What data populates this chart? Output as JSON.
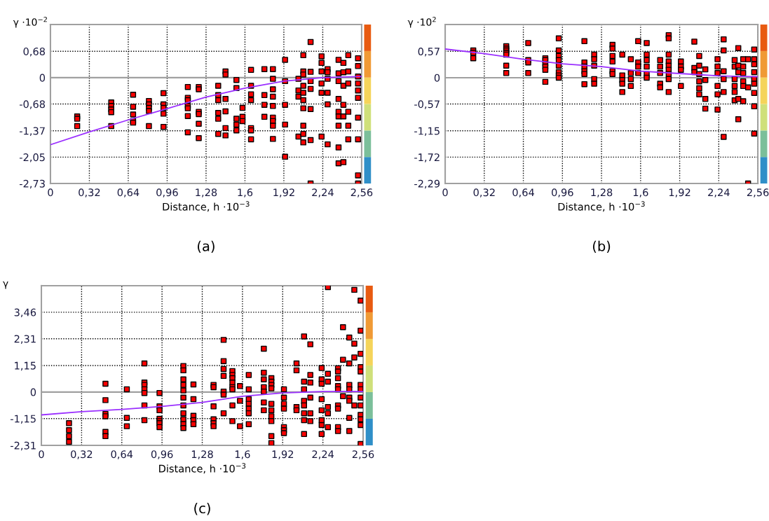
{
  "chart_data": [
    {
      "type": "scatter",
      "ylabel": "γ ·10$^{−2}$",
      "xlabel": "Distance, h ·10$^{−3}$",
      "annotations": [
        "(a)"
      ],
      "xlim": [
        0,
        2.56
      ],
      "ylim": [
        -2.73,
        1.37
      ],
      "xticks": [
        0,
        {
          "value": 0.32,
          "label": "0,32"
        },
        {
          "value": 0.64,
          "label": "0,64"
        },
        {
          "value": 0.96,
          "label": "0,96"
        },
        {
          "value": 1.28,
          "label": "1,28"
        },
        {
          "value": 1.6,
          "label": "1,6"
        },
        {
          "value": 1.92,
          "label": "1,92"
        },
        {
          "value": 2.24,
          "label": "2,24"
        },
        {
          "value": 2.56,
          "label": "2,56"
        }
      ],
      "yticks": [
        {
          "value": 0.68,
          "label": "0,68"
        },
        0,
        {
          "value": -0.68,
          "label": "-0,68"
        },
        {
          "value": -1.37,
          "label": "-1,37"
        },
        {
          "value": -2.05,
          "label": "-2,05"
        },
        {
          "value": -2.73,
          "label": "-2,73"
        }
      ],
      "grid": true,
      "marker": "square",
      "ref_lines": [
        {
          "axis": "y",
          "value": 0,
          "color": "#a0a0a0"
        }
      ],
      "series": [
        {
          "color": "#ff0000",
          "x": [
            0.22,
            0.22,
            0.22,
            0.5,
            0.5,
            0.5,
            0.5,
            0.5,
            0.68,
            0.68,
            0.68,
            0.68,
            0.68,
            0.81,
            0.81,
            0.81,
            0.81,
            0.81,
            0.93,
            0.93,
            0.93,
            0.93,
            0.93,
            1.13,
            1.13,
            1.13,
            1.13,
            1.13,
            1.13,
            1.13,
            1.22,
            1.22,
            1.22,
            1.22,
            1.22,
            1.22,
            1.38,
            1.38,
            1.38,
            1.38,
            1.38,
            1.38,
            1.44,
            1.44,
            1.44,
            1.44,
            1.44,
            1.44,
            1.53,
            1.53,
            1.53,
            1.53,
            1.53,
            1.58,
            1.58,
            1.58,
            1.65,
            1.65,
            1.65,
            1.65,
            1.65,
            1.65,
            1.65,
            1.76,
            1.76,
            1.76,
            1.76,
            1.83,
            1.83,
            1.83,
            1.83,
            1.83,
            1.83,
            1.83,
            1.83,
            1.83,
            1.93,
            1.93,
            1.93,
            1.93,
            1.93,
            2.04,
            2.04,
            2.04,
            2.04,
            2.08,
            2.08,
            2.08,
            2.08,
            2.08,
            2.08,
            2.08,
            2.08,
            2.08,
            2.08,
            2.14,
            2.14,
            2.14,
            2.14,
            2.14,
            2.14,
            2.14,
            2.23,
            2.23,
            2.23,
            2.23,
            2.23,
            2.23,
            2.28,
            2.28,
            2.28,
            2.28,
            2.28,
            2.28,
            2.37,
            2.37,
            2.37,
            2.37,
            2.37,
            2.37,
            2.37,
            2.37,
            2.37,
            2.41,
            2.41,
            2.41,
            2.41,
            2.41,
            2.41,
            2.45,
            2.45,
            2.45,
            2.45,
            2.45,
            2.45,
            2.53,
            2.53,
            2.53,
            2.53,
            2.53,
            2.53,
            2.53,
            2.53,
            2.53,
            2.53
          ],
          "values": [
            -1.0,
            -1.06,
            -1.25,
            -0.64,
            -0.73,
            -0.82,
            -0.89,
            -1.25,
            -0.44,
            -0.75,
            -0.95,
            -1.12,
            -1.16,
            -0.6,
            -0.69,
            -0.78,
            -0.86,
            -1.25,
            -0.4,
            -0.69,
            -0.78,
            -0.93,
            -1.27,
            -0.24,
            -0.52,
            -0.58,
            -0.73,
            -0.79,
            -0.99,
            -1.41,
            -0.24,
            -0.3,
            -0.88,
            -0.94,
            -1.19,
            -1.56,
            -0.21,
            -0.45,
            -0.58,
            -0.91,
            -1.06,
            -1.45,
            0.16,
            0.08,
            -0.55,
            -0.87,
            -1.3,
            -1.49,
            -0.06,
            -0.27,
            -1.06,
            -1.21,
            -1.36,
            -0.78,
            -1.01,
            -1.12,
            0.2,
            -0.21,
            -0.43,
            -0.58,
            -1.3,
            -1.36,
            -1.59,
            0.22,
            -0.45,
            -0.7,
            -1.01,
            0.22,
            -0.03,
            -0.3,
            -0.49,
            -0.73,
            -1.03,
            -1.12,
            -1.24,
            -1.58,
            0.46,
            -0.09,
            -0.7,
            -1.21,
            -2.04,
            -0.03,
            -0.33,
            -0.49,
            -1.52,
            0.58,
            0.16,
            0.08,
            -0.21,
            -0.39,
            -0.58,
            -0.79,
            -1.24,
            -1.45,
            -1.67,
            0.92,
            0.15,
            -0.09,
            -0.29,
            -0.81,
            -1.61,
            -2.73,
            0.55,
            0.38,
            0.16,
            -0.15,
            -0.39,
            -1.52,
            0.22,
            0.14,
            -0.03,
            -0.39,
            -0.69,
            -1.72,
            0.46,
            0.11,
            -0.09,
            -0.55,
            -0.88,
            -1.0,
            -1.24,
            -1.8,
            -2.21,
            0.38,
            0.14,
            -0.21,
            -0.7,
            -1.0,
            -2.18,
            0.58,
            0.16,
            -0.15,
            -0.88,
            -1.24,
            -1.59,
            0.5,
            0.3,
            0.03,
            -0.15,
            -0.33,
            -0.52,
            -1.03,
            -1.59,
            -2.52,
            -2.73
          ]
        },
        {
          "type": "line",
          "marker": "none",
          "color": "#9b30ff",
          "x": [
            0,
            0.32,
            0.64,
            0.96,
            1.28,
            1.6,
            1.92,
            2.24,
            2.56
          ],
          "values": [
            -1.73,
            -1.4,
            -1.09,
            -0.8,
            -0.5,
            -0.27,
            -0.09,
            0.0,
            0.03
          ]
        }
      ]
    },
    {
      "type": "scatter",
      "ylabel": "γ ·10$^{2}$",
      "xlabel": "Distance, h ·10$^{−3}$",
      "annotations": [
        "(b)"
      ],
      "xlim": [
        0,
        2.56
      ],
      "ylim": [
        -2.29,
        1.15
      ],
      "xticks": [
        0,
        {
          "value": 0.32,
          "label": "0,32"
        },
        {
          "value": 0.64,
          "label": "0,64"
        },
        {
          "value": 0.96,
          "label": "0,96"
        },
        {
          "value": 1.28,
          "label": "1,28"
        },
        {
          "value": 1.6,
          "label": "1,6"
        },
        {
          "value": 1.92,
          "label": "1,92"
        },
        {
          "value": 2.24,
          "label": "2,24"
        },
        {
          "value": 2.56,
          "label": "2,56"
        }
      ],
      "yticks": [
        {
          "value": 0.57,
          "label": "0,57"
        },
        0,
        {
          "value": -0.57,
          "label": "-0,57"
        },
        {
          "value": -1.15,
          "label": "-1,15"
        },
        {
          "value": -1.72,
          "label": "-1,72"
        },
        {
          "value": -2.29,
          "label": "-2,29"
        }
      ],
      "grid": true,
      "marker": "square",
      "ref_lines": [
        {
          "axis": "y",
          "value": 0,
          "color": "#a0a0a0"
        }
      ],
      "series": [
        {
          "color": "#ff0000",
          "x": [
            0.23,
            0.23,
            0.23,
            0.5,
            0.5,
            0.5,
            0.5,
            0.5,
            0.5,
            0.5,
            0.68,
            0.68,
            0.68,
            0.68,
            0.82,
            0.82,
            0.82,
            0.82,
            0.82,
            0.82,
            0.93,
            0.93,
            0.93,
            0.93,
            0.93,
            0.93,
            0.93,
            0.93,
            1.14,
            1.14,
            1.14,
            1.14,
            1.14,
            1.14,
            1.22,
            1.22,
            1.22,
            1.22,
            1.22,
            1.37,
            1.37,
            1.37,
            1.37,
            1.37,
            1.37,
            1.45,
            1.45,
            1.45,
            1.45,
            1.45,
            1.52,
            1.52,
            1.52,
            1.52,
            1.58,
            1.58,
            1.58,
            1.58,
            1.65,
            1.65,
            1.65,
            1.65,
            1.65,
            1.65,
            1.76,
            1.76,
            1.76,
            1.76,
            1.76,
            1.83,
            1.83,
            1.83,
            1.83,
            1.83,
            1.83,
            1.83,
            1.83,
            1.83,
            1.93,
            1.93,
            1.93,
            1.93,
            2.04,
            2.04,
            2.04,
            2.08,
            2.08,
            2.08,
            2.08,
            2.08,
            2.08,
            2.13,
            2.13,
            2.13,
            2.13,
            2.23,
            2.23,
            2.23,
            2.23,
            2.23,
            2.23,
            2.28,
            2.28,
            2.28,
            2.28,
            2.28,
            2.28,
            2.37,
            2.37,
            2.37,
            2.37,
            2.37,
            2.37,
            2.4,
            2.4,
            2.4,
            2.4,
            2.4,
            2.44,
            2.44,
            2.44,
            2.44,
            2.44,
            2.44,
            2.48,
            2.48,
            2.48,
            2.53,
            2.53,
            2.53,
            2.53,
            2.53,
            2.53,
            2.53,
            2.53,
            2.53
          ],
          "values": [
            0.59,
            0.54,
            0.42,
            0.68,
            0.63,
            0.59,
            0.54,
            0.5,
            0.26,
            0.1,
            0.75,
            0.38,
            0.33,
            0.1,
            0.42,
            0.38,
            0.3,
            0.24,
            0.17,
            -0.09,
            0.85,
            0.59,
            0.47,
            0.38,
            0.26,
            0.12,
            0.05,
            0.0,
            0.79,
            0.33,
            0.24,
            0.14,
            0.08,
            -0.14,
            0.5,
            0.4,
            0.26,
            -0.03,
            -0.13,
            0.71,
            0.63,
            0.47,
            0.35,
            0.14,
            0.08,
            0.5,
            0.05,
            -0.05,
            -0.13,
            -0.31,
            0.4,
            0.1,
            -0.03,
            -0.18,
            0.79,
            0.33,
            0.24,
            0.1,
            0.75,
            0.5,
            0.38,
            0.24,
            0.08,
            0.0,
            0.38,
            0.24,
            0.1,
            -0.13,
            -0.21,
            0.92,
            0.85,
            0.5,
            0.35,
            0.26,
            0.17,
            0.08,
            -0.03,
            -0.31,
            0.35,
            0.24,
            0.17,
            -0.18,
            0.78,
            0.21,
            0.12,
            0.47,
            0.26,
            0.08,
            -0.08,
            -0.23,
            -0.36,
            0.18,
            -0.05,
            -0.46,
            -0.67,
            0.4,
            0.24,
            0.1,
            -0.18,
            -0.36,
            -0.69,
            0.83,
            0.59,
            0.14,
            -0.03,
            -0.31,
            -1.28,
            0.38,
            0.24,
            -0.03,
            -0.18,
            -0.31,
            -0.49,
            0.64,
            0.26,
            0.12,
            -0.46,
            -0.9,
            0.4,
            0.24,
            0.1,
            -0.08,
            -0.18,
            -0.51,
            0.4,
            -0.21,
            -2.29,
            0.61,
            0.4,
            0.29,
            0.12,
            -0.03,
            -0.13,
            -0.33,
            -0.62,
            -1.21
          ]
        },
        {
          "type": "line",
          "marker": "none",
          "color": "#9b30ff",
          "x": [
            0,
            0.32,
            0.64,
            0.96,
            1.28,
            1.6,
            1.92,
            2.24,
            2.56
          ],
          "values": [
            0.62,
            0.52,
            0.4,
            0.3,
            0.24,
            0.14,
            0.09,
            0.04,
            0.02
          ]
        }
      ]
    },
    {
      "type": "scatter",
      "ylabel": "γ",
      "xlabel": "Distance, h ·10$^{−3}$",
      "annotations": [
        "(c)"
      ],
      "xlim": [
        0,
        2.56
      ],
      "ylim": [
        -2.31,
        4.61
      ],
      "xticks": [
        0,
        {
          "value": 0.32,
          "label": "0,32"
        },
        {
          "value": 0.64,
          "label": "0,64"
        },
        {
          "value": 0.96,
          "label": "0,96"
        },
        {
          "value": 1.28,
          "label": "1,28"
        },
        {
          "value": 1.6,
          "label": "1,6"
        },
        {
          "value": 1.92,
          "label": "1,92"
        },
        {
          "value": 2.24,
          "label": "2,24"
        },
        {
          "value": 2.56,
          "label": "2,56"
        }
      ],
      "yticks": [
        {
          "value": 3.46,
          "label": "3,46"
        },
        {
          "value": 2.31,
          "label": "2,31"
        },
        {
          "value": 1.15,
          "label": "1,15"
        },
        0,
        {
          "value": -1.15,
          "label": "-1,15"
        },
        {
          "value": -2.31,
          "label": "-2,31"
        }
      ],
      "grid": true,
      "marker": "square",
      "ref_lines": [
        {
          "axis": "y",
          "value": 0,
          "color": "#a0a0a0"
        }
      ],
      "series": [
        {
          "color": "#ff0000",
          "x": [
            0.22,
            0.22,
            0.22,
            0.22,
            0.51,
            0.51,
            0.51,
            0.51,
            0.51,
            0.51,
            0.68,
            0.68,
            0.68,
            0.82,
            0.82,
            0.82,
            0.82,
            0.82,
            0.82,
            0.82,
            0.94,
            0.94,
            0.94,
            0.94,
            0.94,
            0.94,
            0.94,
            1.13,
            1.13,
            1.13,
            1.13,
            1.13,
            1.13,
            1.13,
            1.13,
            1.13,
            1.13,
            1.13,
            1.21,
            1.21,
            1.21,
            1.21,
            1.21,
            1.37,
            1.37,
            1.37,
            1.37,
            1.37,
            1.37,
            1.45,
            1.45,
            1.45,
            1.45,
            1.45,
            1.45,
            1.45,
            1.52,
            1.52,
            1.52,
            1.52,
            1.52,
            1.52,
            1.52,
            1.52,
            1.58,
            1.58,
            1.58,
            1.65,
            1.65,
            1.65,
            1.65,
            1.65,
            1.65,
            1.65,
            1.77,
            1.77,
            1.77,
            1.77,
            1.77,
            1.77,
            1.77,
            1.83,
            1.83,
            1.83,
            1.83,
            1.83,
            1.83,
            1.83,
            1.83,
            1.83,
            1.83,
            1.93,
            1.93,
            1.93,
            1.93,
            1.93,
            1.93,
            1.93,
            2.03,
            2.03,
            2.03,
            2.03,
            2.09,
            2.09,
            2.09,
            2.09,
            2.09,
            2.09,
            2.09,
            2.09,
            2.14,
            2.14,
            2.14,
            2.14,
            2.14,
            2.14,
            2.23,
            2.23,
            2.23,
            2.23,
            2.23,
            2.23,
            2.23,
            2.23,
            2.28,
            2.28,
            2.28,
            2.28,
            2.28,
            2.28,
            2.36,
            2.36,
            2.36,
            2.36,
            2.36,
            2.36,
            2.36,
            2.36,
            2.36,
            2.4,
            2.4,
            2.4,
            2.45,
            2.45,
            2.45,
            2.45,
            2.45,
            2.45,
            2.45,
            2.45,
            2.49,
            2.49,
            2.49,
            2.49,
            2.54,
            2.54,
            2.54,
            2.54,
            2.54,
            2.54,
            2.54,
            2.54,
            2.54,
            2.54,
            2.54,
            2.54,
            2.54
          ],
          "values": [
            -1.35,
            -1.65,
            -1.91,
            -2.16,
            0.36,
            -0.35,
            -0.95,
            -1.05,
            -1.73,
            -1.91,
            0.12,
            -1.12,
            -1.48,
            1.24,
            0.41,
            0.31,
            0.12,
            -0.04,
            -0.58,
            -1.22,
            -0.04,
            -0.62,
            -0.79,
            -1.16,
            -1.26,
            -1.35,
            -1.52,
            1.13,
            0.94,
            0.55,
            0.31,
            0.07,
            -0.24,
            -0.58,
            -0.92,
            -1.18,
            -1.39,
            -1.56,
            0.33,
            -0.31,
            -1.03,
            -1.22,
            -1.39,
            0.31,
            0.21,
            -0.62,
            -1.18,
            -1.35,
            -1.48,
            2.26,
            1.34,
            1.0,
            0.7,
            0.02,
            -0.11,
            -0.92,
            0.91,
            0.74,
            0.6,
            0.41,
            0.21,
            0.12,
            -0.58,
            -1.26,
            0.26,
            -0.38,
            -1.48,
            0.74,
            0.12,
            -0.31,
            -0.51,
            -0.72,
            -0.92,
            -1.39,
            1.88,
            0.84,
            0.55,
            0.21,
            0.02,
            -0.45,
            -0.79,
            0.6,
            0.45,
            0.31,
            0.16,
            -0.51,
            -0.79,
            -1.05,
            -1.26,
            -1.91,
            -2.21,
            0.12,
            -0.24,
            -0.51,
            -0.72,
            -1.52,
            -1.65,
            -1.78,
            1.24,
            0.94,
            -0.65,
            -0.79,
            2.41,
            0.45,
            0.12,
            -0.38,
            -0.58,
            -0.92,
            -1.22,
            -1.82,
            2.07,
            0.74,
            0.41,
            -0.24,
            -0.92,
            -1.26,
            1.04,
            0.55,
            0.36,
            -0.31,
            -0.79,
            -1.22,
            -1.43,
            -1.82,
            4.55,
            0.79,
            0.45,
            -0.65,
            -0.92,
            -1.52,
            1.03,
            0.89,
            0.6,
            0.26,
            0.12,
            -0.58,
            -0.72,
            -1.52,
            -1.69,
            2.81,
            1.4,
            -0.18,
            2.36,
            1.24,
            0.31,
            0.12,
            -0.24,
            -0.38,
            -1.12,
            -1.69,
            4.43,
            2.1,
            1.5,
            -0.58,
            3.96,
            2.66,
            1.66,
            1.08,
            0.89,
            0.31,
            0.12,
            -0.24,
            -0.58,
            -0.99,
            -1.18,
            -1.43,
            -2.25
          ]
        },
        {
          "type": "line",
          "marker": "none",
          "color": "#9b30ff",
          "x": [
            0,
            0.32,
            0.64,
            0.96,
            1.28,
            1.6,
            1.92,
            2.24,
            2.56
          ],
          "values": [
            -0.99,
            -0.85,
            -0.75,
            -0.62,
            -0.45,
            -0.18,
            -0.04,
            0.02,
            0.02
          ]
        }
      ]
    }
  ]
}
